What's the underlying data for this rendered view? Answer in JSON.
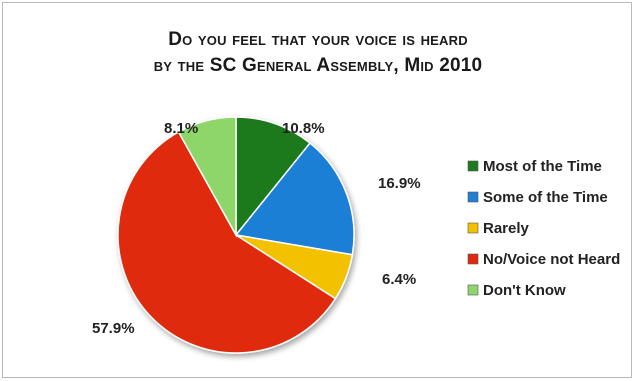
{
  "chart_data": {
    "type": "pie",
    "title_line1": "Do you feel that your voice is heard",
    "title_line2": "by the SC General Assembly, Mid 2010",
    "labels": [
      "Most of the Time",
      "Some of the Time",
      "Rarely",
      "No/Voice not Heard",
      "Don't Know"
    ],
    "values": [
      10.8,
      16.9,
      6.4,
      57.9,
      8.1
    ],
    "value_labels": [
      "10.8%",
      "16.9%",
      "6.4%",
      "57.9%",
      "8.1%"
    ],
    "colors": [
      "#1f7a1f",
      "#1e7fd6",
      "#f2c200",
      "#e02a10",
      "#8fd66a"
    ],
    "start_angle_deg": 0,
    "direction": "clockwise",
    "legend_position": "right"
  }
}
